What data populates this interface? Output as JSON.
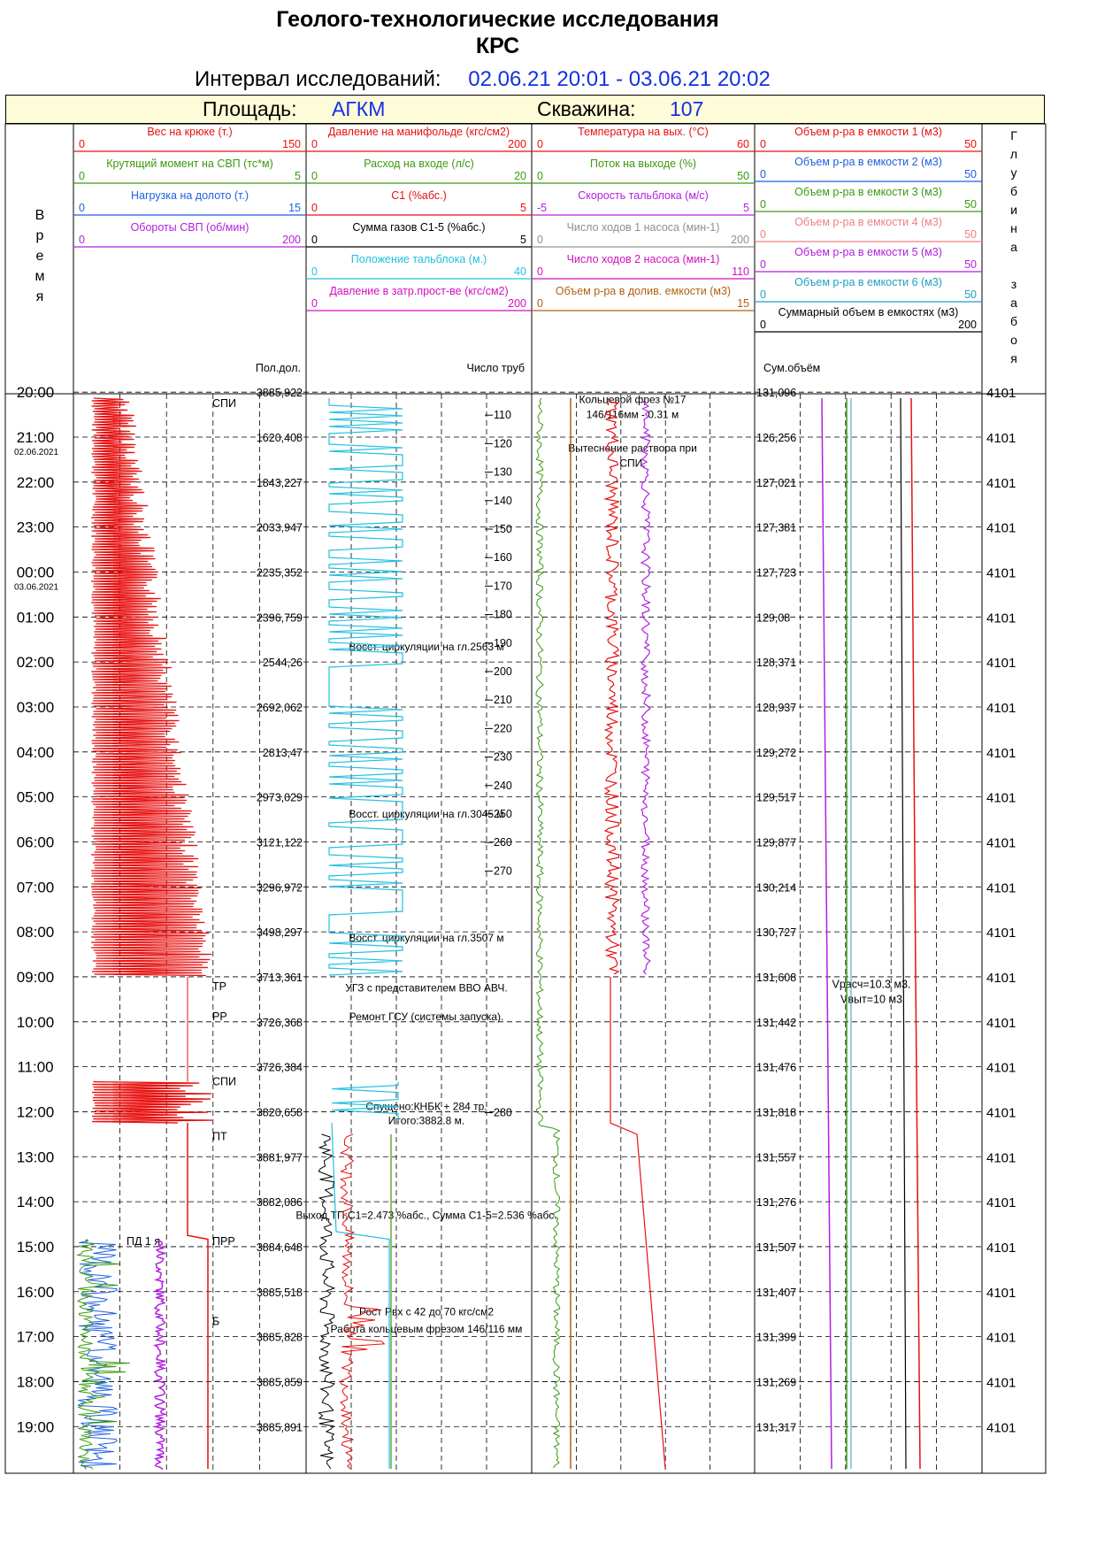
{
  "header": {
    "title1": "Геолого-технологические исследования",
    "title2": "КРС",
    "interval_label": "Интервал исследований:",
    "interval_value": "02.06.21 20:01 - 03.06.21 20:02",
    "area_label": "Площадь:",
    "area_value": "АГКМ",
    "well_label": "Скважина:",
    "well_value": "107"
  },
  "colors": {
    "red": "#e81010",
    "green": "#3a9a10",
    "blue": "#1d5fe0",
    "purple": "#b020e0",
    "cyan": "#20c0e0",
    "black": "#000000",
    "magenta": "#d010c0",
    "gray": "#909090",
    "brown": "#b06010",
    "salmon": "#f08080",
    "teal": "#20a0c0"
  },
  "time_axis": {
    "label": "Время",
    "ticks": [
      "21:00",
      "22:00",
      "23:00",
      "00:00",
      "01:00",
      "02:00",
      "03:00",
      "04:00",
      "05:00",
      "06:00",
      "07:00",
      "08:00",
      "09:00",
      "10:00",
      "11:00",
      "12:00",
      "13:00",
      "14:00",
      "15:00",
      "16:00",
      "17:00",
      "18:00",
      "19:00",
      "20:00"
    ],
    "date_labels": [
      {
        "after": "21:00",
        "text": "02.06.2021"
      },
      {
        "after": "00:00",
        "text": "03.06.2021"
      }
    ]
  },
  "depth_axis": {
    "label": "Глубина забоя",
    "values": [
      "4101",
      "4101",
      "4101",
      "4101",
      "4101",
      "4101",
      "4101",
      "4101",
      "4101",
      "4101",
      "4101",
      "4101",
      "4101",
      "4101",
      "4101",
      "4101",
      "4101",
      "4101",
      "4101",
      "4101",
      "4101",
      "4101",
      "4101",
      "4101"
    ]
  },
  "tracks": [
    {
      "curves": [
        {
          "name": "Вес на крюке  (т.)",
          "min": "0",
          "max": "150",
          "color": "red"
        },
        {
          "name": "Крутящий момент на СВП (тс*м)",
          "min": "0",
          "max": "5",
          "color": "green"
        },
        {
          "name": "Нагрузка на долото (т.)",
          "min": "0",
          "max": "15",
          "color": "blue"
        },
        {
          "name": "Обороты СВП (об/мин)",
          "min": "0",
          "max": "200",
          "color": "purple"
        }
      ],
      "footer": "Пол.дол.",
      "values": [
        "1620,408",
        "1843,227",
        "2033,947",
        "2235,352",
        "2396,759",
        "2544,26",
        "2692,062",
        "2813,47",
        "2973,029",
        "3121,122",
        "3296,972",
        "3498,297",
        "3713,361",
        "3726,368",
        "3726,384",
        "3820,658",
        "3881,977",
        "3882,086",
        "3884,648",
        "3885,518",
        "3885,828",
        "3885,859",
        "3885,891",
        "3885,922"
      ],
      "ops": [
        {
          "text": "СПИ",
          "time": "20:15"
        },
        {
          "text": "ТР",
          "time": "09:13"
        },
        {
          "text": "РР",
          "time": "09:53"
        },
        {
          "text": "СПИ",
          "time": "11:20"
        },
        {
          "text": "ПТ",
          "time": "12:33"
        },
        {
          "text": "ПРР",
          "time": "14:53"
        },
        {
          "text": "ПД 1 я",
          "time": "14:53"
        },
        {
          "text": "Б",
          "time": "16:40"
        }
      ]
    },
    {
      "curves": [
        {
          "name": "Давление на манифольде (кгс/см2)",
          "min": "0",
          "max": "200",
          "color": "red"
        },
        {
          "name": "Расход на входе (л/с)",
          "min": "0",
          "max": "20",
          "color": "green"
        },
        {
          "name": "С1 (%абс.)",
          "min": "0",
          "max": "5",
          "color": "red"
        },
        {
          "name": "Сумма газов С1-5 (%абс.)",
          "min": "0",
          "max": "5",
          "color": "black"
        },
        {
          "name": "Положение тальблока (м.)",
          "min": "0",
          "max": "40",
          "color": "cyan"
        },
        {
          "name": "Давление в затр.прост-ве (кгс/см2)",
          "min": "0",
          "max": "200",
          "color": "magenta"
        }
      ],
      "footer": "Число труб",
      "pipe_counts": [
        "110",
        "120",
        "130",
        "140",
        "150",
        "160",
        "170",
        "180",
        "190",
        "200",
        "210",
        "220",
        "230",
        "240",
        "250",
        "260",
        "270",
        "280"
      ],
      "notes": [
        {
          "text": "Восст. циркуляции на гл.2563 м",
          "time": "01:40"
        },
        {
          "text": "Восст. циркуляции на гл.3045 м",
          "time": "05:23"
        },
        {
          "text": "Восст. циркуляции на гл.3507 м",
          "time": "08:08"
        },
        {
          "text": "УГЗ с представителем ВВО АВЧ.",
          "time": "09:15"
        },
        {
          "text": "Ремонт ГСУ (системы запуска).",
          "time": "09:53"
        },
        {
          "text": "Спущено:КНБК + 284 тр.",
          "time": "11:53"
        },
        {
          "text": "Итого:3882.8 м.",
          "time": "12:12"
        },
        {
          "text": "Выход ТП:С1=2.473 %абс., Сумма С1-5=2.536 %абс.",
          "time": "14:18"
        },
        {
          "text": "Рост Рвх с 42 до 70 кгс/см2",
          "time": "16:27"
        },
        {
          "text": "Работа кольцевым фрезом 146/116 мм",
          "time": "16:50"
        }
      ]
    },
    {
      "curves": [
        {
          "name": "Температура  на вых. (°С)",
          "min": "0",
          "max": "60",
          "color": "red"
        },
        {
          "name": "Поток на выходе (%)",
          "min": "0",
          "max": "50",
          "color": "green"
        },
        {
          "name": "Скорость тальблока (м/с)",
          "min": "-5",
          "max": "5",
          "color": "purple"
        },
        {
          "name": "Число ходов 1 насоса (мин-1)",
          "min": "0",
          "max": "200",
          "color": "gray"
        },
        {
          "name": "Число ходов 2 насоса (мин-1)",
          "min": "0",
          "max": "110",
          "color": "magenta"
        },
        {
          "name": "Объем р-ра в долив. емкости (м3)",
          "min": "0",
          "max": "15",
          "color": "brown"
        }
      ],
      "footer": "",
      "notes": [
        {
          "text": "Кольцевой фрез №17",
          "time": "20:10"
        },
        {
          "text": "146/116мм - 0.31 м",
          "time": "20:30"
        },
        {
          "text": "Вытеснение раствора при",
          "time": "21:15"
        },
        {
          "text": "СПИ.",
          "time": "21:35"
        }
      ]
    },
    {
      "curves": [
        {
          "name": "Объем р-ра в емкости 1 (м3)",
          "min": "0",
          "max": "50",
          "color": "red"
        },
        {
          "name": "Объем р-ра в емкости 2 (м3)",
          "min": "0",
          "max": "50",
          "color": "blue"
        },
        {
          "name": "Объем р-ра в емкости 3 (м3)",
          "min": "0",
          "max": "50",
          "color": "green"
        },
        {
          "name": "Объем р-ра в емкости 4 (м3)",
          "min": "0",
          "max": "50",
          "color": "salmon"
        },
        {
          "name": "Объем р-ра в емкости 5 (м3)",
          "min": "0",
          "max": "50",
          "color": "purple"
        },
        {
          "name": "Объем р-ра в емкости 6 (м3)",
          "min": "0",
          "max": "50",
          "color": "teal"
        },
        {
          "name": "Суммарный объем в емкостях (м3)",
          "min": "0",
          "max": "200",
          "color": "black"
        }
      ],
      "footer": "Сум.объём",
      "values": [
        "126,256",
        "127,021",
        "127,381",
        "127,723",
        "129,08",
        "128,371",
        "128,937",
        "129,272",
        "129,517",
        "129,877",
        "130,214",
        "130,727",
        "131,608",
        "131,442",
        "131,476",
        "131,818",
        "131,557",
        "131,276",
        "131,507",
        "131,407",
        "131,399",
        "131,269",
        "131,317",
        "131,096"
      ],
      "notes": [
        {
          "text": "Vрасч=10.3 м3.",
          "time": "09:10"
        },
        {
          "text": "Vвыт=10 м3",
          "time": "09:30"
        }
      ]
    }
  ],
  "chart_data": {
    "type": "line",
    "x_label": "Время",
    "x": [
      "21:00",
      "22:00",
      "23:00",
      "00:00",
      "01:00",
      "02:00",
      "03:00",
      "04:00",
      "05:00",
      "06:00",
      "07:00",
      "08:00",
      "09:00",
      "10:00",
      "11:00",
      "12:00",
      "13:00",
      "14:00",
      "15:00",
      "16:00",
      "17:00",
      "18:00",
      "19:00",
      "20:00"
    ],
    "series": [
      {
        "name": "Пол.дол.",
        "values": [
          1620.408,
          1843.227,
          2033.947,
          2235.352,
          2396.759,
          2544.26,
          2692.062,
          2813.47,
          2973.029,
          3121.122,
          3296.972,
          3498.297,
          3713.361,
          3726.368,
          3726.384,
          3820.658,
          3881.977,
          3882.086,
          3884.648,
          3885.518,
          3885.828,
          3885.859,
          3885.891,
          3885.922
        ]
      },
      {
        "name": "Сум.объём",
        "values": [
          126.256,
          127.021,
          127.381,
          127.723,
          129.08,
          128.371,
          128.937,
          129.272,
          129.517,
          129.877,
          130.214,
          130.727,
          131.608,
          131.442,
          131.476,
          131.818,
          131.557,
          131.276,
          131.507,
          131.407,
          131.399,
          131.269,
          131.317,
          131.096
        ]
      },
      {
        "name": "Глубина забоя",
        "values": [
          4101,
          4101,
          4101,
          4101,
          4101,
          4101,
          4101,
          4101,
          4101,
          4101,
          4101,
          4101,
          4101,
          4101,
          4101,
          4101,
          4101,
          4101,
          4101,
          4101,
          4101,
          4101,
          4101,
          4101
        ]
      }
    ],
    "grid": true
  }
}
